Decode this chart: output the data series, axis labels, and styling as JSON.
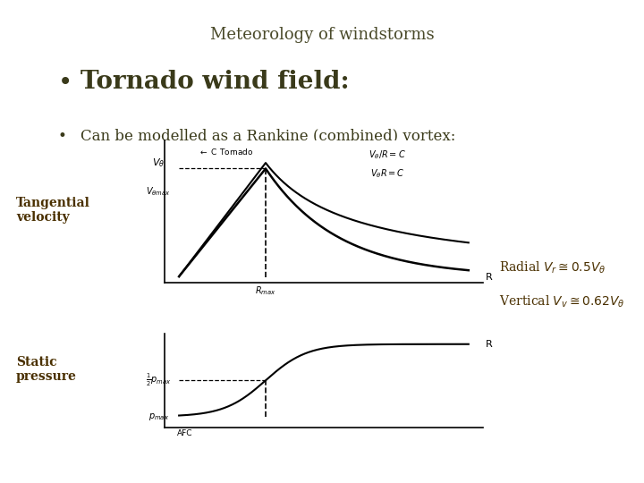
{
  "title": "Meteorology of windstorms",
  "title_color": "#4a4a2a",
  "title_fontsize": 13,
  "bullet1": "Tornado wind field:",
  "bullet1_fontsize": 20,
  "bullet1_color": "#3a3a1a",
  "bullet2": "Can be modelled as a Rankine (combined) vortex:",
  "bullet2_fontsize": 12,
  "bullet2_color": "#3a3a1a",
  "label_tangential": "Tangential\nvelocity",
  "label_static": "Static\npressure",
  "label_color": "#4a3000",
  "label_fontsize": 10,
  "radial_fontsize": 11,
  "background_color": "#ffffff"
}
